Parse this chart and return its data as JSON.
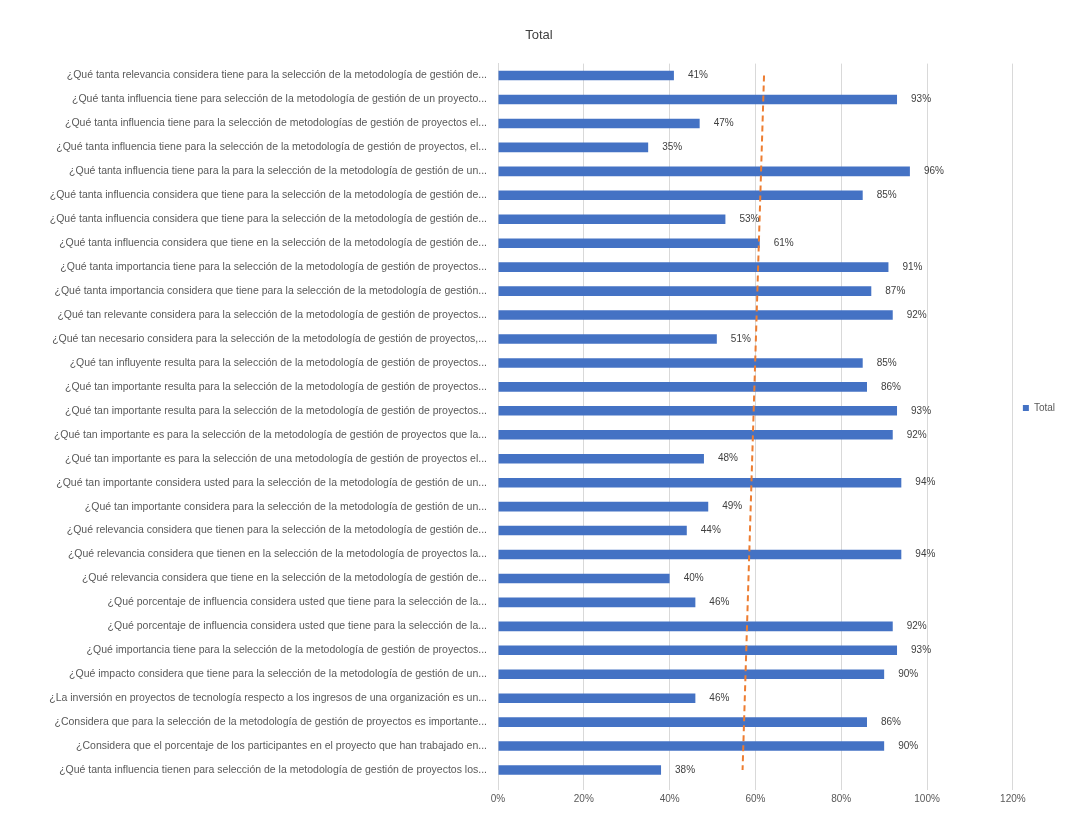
{
  "chart_data": {
    "type": "bar",
    "orientation": "horizontal",
    "title": "Total",
    "categories": [
      "¿Qué tanta relevancia considera tiene para la selección de la metodología de gestión de...",
      "¿Qué tanta influencia tiene para selección de la metodología de gestión de un proyecto...",
      "¿Qué tanta influencia tiene para la selección de metodologías de gestión de proyectos el...",
      "¿Qué tanta influencia tiene para la selección de la metodología de gestión de proyectos, el...",
      "¿Qué tanta influencia tiene para la para la selección de la metodología de gestión de un...",
      "¿Qué tanta influencia considera que tiene para la selección de la metodología de gestión de...",
      "¿Qué tanta influencia considera que tiene para la selección de la metodología de gestión de...",
      "¿Qué tanta influencia considera que tiene en la selección de la metodología de gestión de...",
      "¿Qué tanta importancia tiene para la selección de la metodología de gestión de proyectos...",
      "¿Qué tanta importancia considera que tiene para la selección de la metodología de gestión...",
      "¿Qué tan relevante considera para la selección de la metodología de gestión de proyectos...",
      "¿Qué tan necesario considera para la selección de la metodología de gestión de proyectos,...",
      "¿Qué tan influyente resulta para la selección de la metodología de gestión de proyectos...",
      "¿Qué tan importante resulta para la selección de la metodología de gestión de proyectos...",
      "¿Qué tan importante resulta para la selección de la metodología de gestión de proyectos...",
      "¿Qué tan importante es para la selección de la metodología de gestión de proyectos que la...",
      "¿Qué tan importante es para la selección de una metodología de gestión de proyectos el...",
      "¿Qué tan importante considera usted para la selección de la metodología de gestión de un...",
      "¿Qué tan importante considera para la selección de la metodología de gestión de un...",
      "¿Qué relevancia considera que tienen para la selección de la metodología de gestión de...",
      "¿Qué relevancia considera que tienen en la selección de la metodología de proyectos la...",
      "¿Qué relevancia considera que tiene en la selección de la metodología de gestión de...",
      "¿Qué porcentaje de influencia considera usted que tiene para la selección de la...",
      "¿Qué porcentaje de influencia considera usted que tiene para la selección de la...",
      "¿Qué importancia tiene para la selección de la metodología de gestión de proyectos...",
      "¿Qué impacto considera que tiene para la selección de la metodología de gestión de un...",
      "¿La inversión en proyectos de tecnología respecto a los ingresos de una organización es un...",
      "¿Considera que para la selección de la metodología de gestión de proyectos es importante...",
      "¿Considera que el porcentaje de los participantes en el proyecto que han trabajado en...",
      "¿Qué tanta influencia tienen para selección de la metodología de gestión de proyectos los..."
    ],
    "series": [
      {
        "name": "Total",
        "color": "#4472c4",
        "values": [
          41,
          93,
          47,
          35,
          96,
          85,
          53,
          61,
          91,
          87,
          92,
          51,
          85,
          86,
          93,
          92,
          48,
          94,
          49,
          44,
          94,
          40,
          46,
          92,
          93,
          90,
          46,
          86,
          90,
          38
        ],
        "value_labels": [
          "41%",
          "93%",
          "47%",
          "35%",
          "96%",
          "85%",
          "53%",
          "61%",
          "91%",
          "87%",
          "92%",
          "51%",
          "85%",
          "86%",
          "93%",
          "92%",
          "48%",
          "94%",
          "49%",
          "44%",
          "94%",
          "40%",
          "46%",
          "92%",
          "93%",
          "90%",
          "46%",
          "86%",
          "90%",
          "38%"
        ]
      },
      {
        "type": "line",
        "color": "#ed7d31",
        "line_style": "dashed",
        "marker": "none",
        "values": [
          62,
          null,
          null,
          null,
          null,
          null,
          null,
          null,
          null,
          null,
          null,
          null,
          null,
          null,
          null,
          null,
          null,
          null,
          null,
          null,
          null,
          null,
          null,
          null,
          null,
          null,
          null,
          null,
          null,
          57
        ]
      }
    ],
    "xlim": [
      0,
      120
    ],
    "xticks": [
      {
        "value": 0,
        "label": "0%"
      },
      {
        "value": 20,
        "label": "20%"
      },
      {
        "value": 40,
        "label": "40%"
      },
      {
        "value": 60,
        "label": "60%"
      },
      {
        "value": 80,
        "label": "80%"
      },
      {
        "value": 100,
        "label": "100%"
      },
      {
        "value": 120,
        "label": "120%"
      }
    ],
    "grid": "x",
    "legend": "right"
  }
}
